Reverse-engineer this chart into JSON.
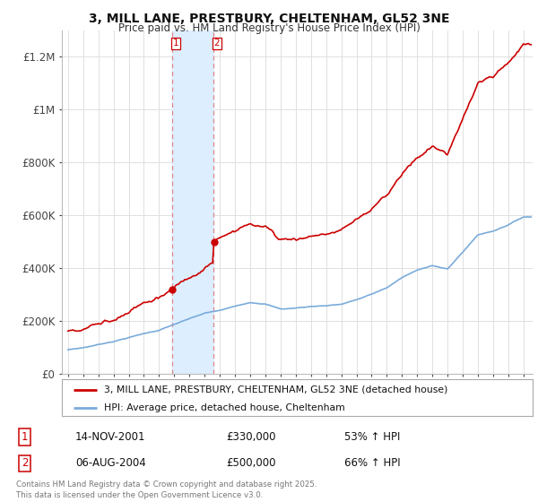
{
  "title_line1": "3, MILL LANE, PRESTBURY, CHELTENHAM, GL52 3NE",
  "title_line2": "Price paid vs. HM Land Registry's House Price Index (HPI)",
  "legend_line1": "3, MILL LANE, PRESTBURY, CHELTENHAM, GL52 3NE (detached house)",
  "legend_line2": "HPI: Average price, detached house, Cheltenham",
  "transaction1_date": "14-NOV-2001",
  "transaction1_price": "£330,000",
  "transaction1_hpi": "53% ↑ HPI",
  "transaction2_date": "06-AUG-2004",
  "transaction2_price": "£500,000",
  "transaction2_hpi": "66% ↑ HPI",
  "copyright_text": "Contains HM Land Registry data © Crown copyright and database right 2025.\nThis data is licensed under the Open Government Licence v3.0.",
  "line_color_red": "#cc0000",
  "line_color_blue": "#7aabdb",
  "highlight_color": "#ddeeff",
  "transaction_line_color": "#dd8888",
  "grid_color": "#e0e0e0",
  "background_color": "#ffffff",
  "ylim_min": 0,
  "ylim_max": 1300000,
  "ylabel_ticks": [
    0,
    200000,
    400000,
    600000,
    800000,
    1000000,
    1200000
  ],
  "ylabel_labels": [
    "£0",
    "£200K",
    "£400K",
    "£600K",
    "£800K",
    "£1M",
    "£1.2M"
  ],
  "transaction1_year": 2001.87,
  "transaction2_year": 2004.59,
  "transaction1_value": 330000,
  "transaction2_value": 500000
}
